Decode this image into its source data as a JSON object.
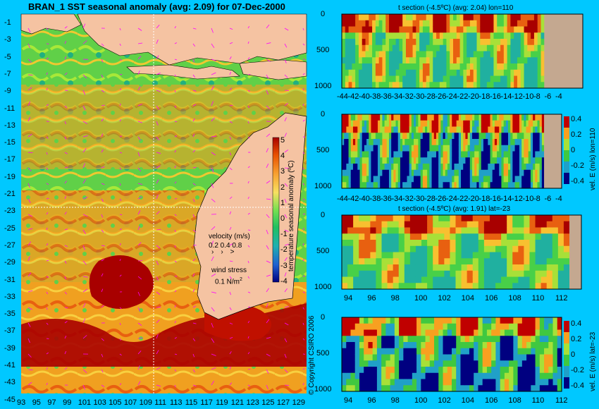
{
  "main_map": {
    "title": "BRAN_1  SST seasonal anomaly (avg: 2.09) for 07-Dec-2000",
    "lat_ticks": [
      "-1",
      "-3",
      "-5",
      "-7",
      "-9",
      "-11",
      "-13",
      "-15",
      "-17",
      "-19",
      "-21",
      "-23",
      "-25",
      "-27",
      "-29",
      "-31",
      "-33",
      "-35",
      "-37",
      "-39",
      "-41",
      "-43",
      "-45"
    ],
    "lon_ticks": [
      "93",
      "95",
      "97",
      "99",
      "101",
      "103",
      "105",
      "107",
      "109",
      "111",
      "113",
      "115",
      "117",
      "119",
      "121",
      "123",
      "125",
      "127",
      "129"
    ],
    "colorbar": {
      "label": "temperature seasonal anomaly (ºC)",
      "ticks": [
        "5",
        "4",
        "3",
        "2",
        "1",
        "0",
        "-1",
        "-2",
        "-3",
        "-4"
      ]
    },
    "legend": {
      "velocity_title": "velocity (m/s)",
      "velocity_values": "0.2 0.4 0.8",
      "wind_title": "wind stress",
      "wind_value": "0.1 N/m",
      "wind_exp": "2"
    },
    "copyright": "© Copyright CSIRO 2006"
  },
  "colors": {
    "background": "#00c8ff",
    "land": "#f5c3a2",
    "land_gray": "#c4a890",
    "hot": "#a80000",
    "warm": "#f0a020",
    "neutral": "#48d848",
    "cool": "#2090d0",
    "arrow": "#ff00ff"
  },
  "chart_data": [
    {
      "type": "heatmap",
      "title": "t section (-4.5ºC) (avg: 2.04) lon=110",
      "x_ticks": [
        "-44",
        "-42",
        "-40",
        "-38",
        "-36",
        "-34",
        "-32",
        "-30",
        "-28",
        "-26",
        "-24",
        "-22",
        "-20",
        "-18",
        "-16",
        "-14",
        "-12",
        "-10",
        "-8",
        "-6",
        "-4"
      ],
      "y_ticks": [
        "0",
        "500",
        "1000"
      ]
    },
    {
      "type": "heatmap",
      "title": "",
      "x_ticks": [
        "-44",
        "-42",
        "-40",
        "-38",
        "-36",
        "-34",
        "-32",
        "-30",
        "-28",
        "-26",
        "-24",
        "-22",
        "-20",
        "-18",
        "-16",
        "-14",
        "-12",
        "-10",
        "-8",
        "-6",
        "-4"
      ],
      "y_ticks": [
        "0",
        "500",
        "1000"
      ],
      "colorbar_label": "vel. E (m/s) lon=110",
      "colorbar_ticks": [
        "0.4",
        "0.2",
        "0",
        "-0.2",
        "-0.4"
      ]
    },
    {
      "type": "heatmap",
      "title": "t section (-4.5ºC) (avg: 1.91) lat=-23",
      "x_ticks": [
        "94",
        "96",
        "98",
        "100",
        "102",
        "104",
        "106",
        "108",
        "110",
        "112"
      ],
      "y_ticks": [
        "0",
        "500",
        "1000"
      ]
    },
    {
      "type": "heatmap",
      "title": "",
      "x_ticks": [
        "94",
        "96",
        "98",
        "100",
        "102",
        "104",
        "106",
        "108",
        "110",
        "112"
      ],
      "y_ticks": [
        "0",
        "500",
        "1000"
      ],
      "colorbar_label": "vel. E (m/s) lat=-23",
      "colorbar_ticks": [
        "0.4",
        "0.2",
        "0",
        "-0.2",
        "-0.4"
      ]
    }
  ]
}
